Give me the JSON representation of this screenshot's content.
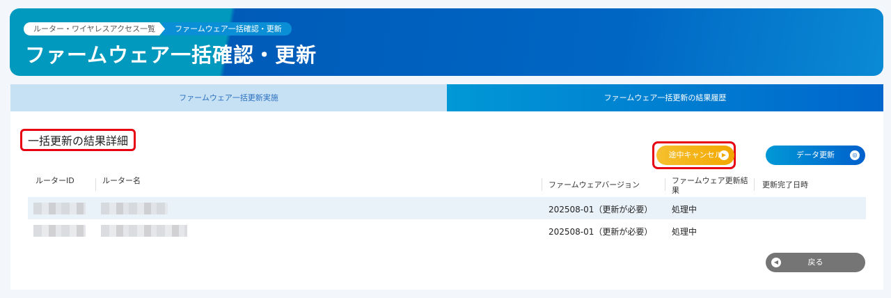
{
  "breadcrumb": [
    "ルーター・ワイヤレスアクセス一覧",
    "ファームウェア一括確認・更新"
  ],
  "page_title": "ファームウェア一括確認・更新",
  "tabs": [
    {
      "label": "ファームウェア一括更新実施",
      "active": false
    },
    {
      "label": "ファームウェア一括更新の結果履歴",
      "active": true
    }
  ],
  "section_title": "一括更新の結果詳細",
  "buttons": {
    "cancel": "途中キャンセル",
    "refresh": "データ更新",
    "back": "戻る"
  },
  "table": {
    "headers": [
      "ルーターID",
      "ルーター名",
      "ファームウェアバージョン",
      "ファームウェア更新結果",
      "更新完了日時"
    ],
    "rows": [
      {
        "router_id": "(blurred)",
        "router_name": "(blurred)",
        "version": "202508-01（更新が必要）",
        "result": "処理中",
        "completed": ""
      },
      {
        "router_id": "(blurred)",
        "router_name": "(blurred)",
        "version": "202508-01（更新が必要）",
        "result": "処理中",
        "completed": ""
      }
    ]
  },
  "colors": {
    "accent": "#0066cc",
    "cancel": "#f2a700",
    "highlight": "#e60012"
  }
}
